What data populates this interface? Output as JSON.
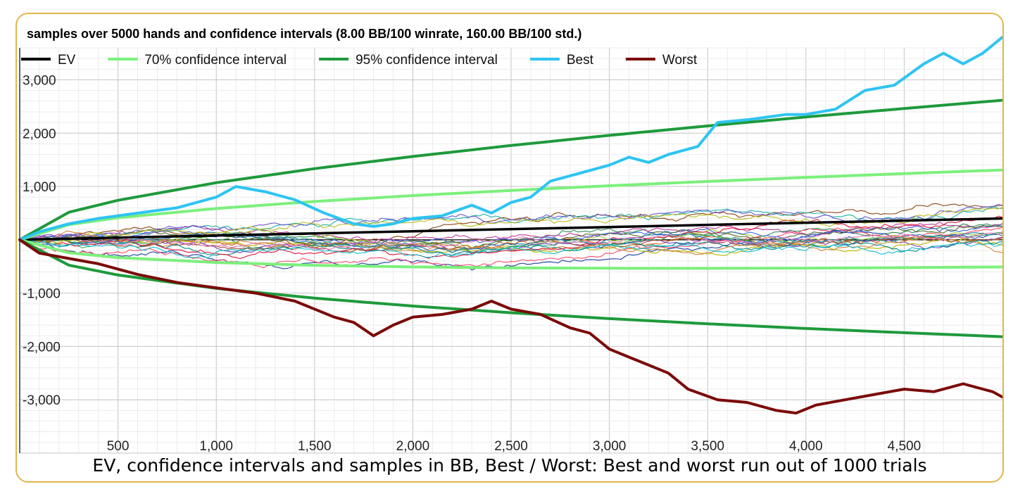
{
  "caption": "EV, confidence intervals and samples in BB, Best / Worst: Best and worst run out of 1000 trials",
  "chart_data": {
    "type": "line",
    "title": "samples over 5000 hands and confidence intervals (8.00 BB/100 winrate, 160.00 BB/100 std.)",
    "xlabel": "",
    "ylabel": "",
    "xlim": [
      0,
      5000
    ],
    "ylim": [
      -4000,
      3600
    ],
    "x_ticks": [
      500,
      1000,
      1500,
      2000,
      2500,
      3000,
      3500,
      4000,
      4500
    ],
    "x_tick_labels": [
      "500",
      "1,000",
      "1,500",
      "2,000",
      "2,500",
      "3,000",
      "3,500",
      "4,000",
      "4,500"
    ],
    "y_ticks": [
      3000,
      2000,
      1000,
      -1000,
      -2000,
      -3000
    ],
    "y_tick_labels": [
      "3,000",
      "2,000",
      "1,000",
      "-1,000",
      "-2,000",
      "-3,000"
    ],
    "grid": true,
    "legend_position": "top",
    "winrate_bb_per_100": 8.0,
    "std_bb_per_100": 160.0,
    "legend": [
      {
        "label": "EV",
        "color": "#000000"
      },
      {
        "label": "70% confidence interval",
        "color": "#7cf07c"
      },
      {
        "label": "95% confidence interval",
        "color": "#1e9a3c"
      },
      {
        "label": "Best",
        "color": "#2ec4f2"
      },
      {
        "label": "Worst",
        "color": "#7b0a0a"
      }
    ],
    "series": [
      {
        "name": "EV",
        "color": "#000000",
        "x": [
          0,
          1000,
          2000,
          3000,
          4000,
          5000
        ],
        "y": [
          0,
          80,
          160,
          240,
          320,
          400
        ]
      },
      {
        "name": "70% confidence interval",
        "color": "#7cf07c",
        "x": [
          0,
          250,
          500,
          1000,
          1500,
          2000,
          2500,
          3000,
          3500,
          4000,
          4500,
          5000
        ],
        "y_upper": [
          0,
          283,
          413,
          586,
          718,
          829,
          926,
          1014,
          1095,
          1171,
          1242,
          1309
        ],
        "y_lower": [
          0,
          -243,
          -333,
          -426,
          -478,
          -509,
          -526,
          -534,
          -535,
          -531,
          -522,
          -509
        ]
      },
      {
        "name": "95% confidence interval",
        "color": "#1e9a3c",
        "x": [
          0,
          250,
          500,
          1000,
          1500,
          2000,
          2500,
          3000,
          3500,
          4000,
          4500,
          5000
        ],
        "y_upper": [
          0,
          516,
          741,
          1071,
          1334,
          1563,
          1768,
          1958,
          2135,
          2303,
          2463,
          2617
        ],
        "y_lower": [
          0,
          -476,
          -661,
          -911,
          -1094,
          -1243,
          -1368,
          -1478,
          -1575,
          -1663,
          -1743,
          -1817
        ]
      },
      {
        "name": "Best",
        "color": "#2ec4f2",
        "x": [
          0,
          100,
          250,
          400,
          600,
          800,
          1000,
          1100,
          1250,
          1400,
          1550,
          1700,
          1800,
          1900,
          2000,
          2150,
          2300,
          2400,
          2500,
          2600,
          2700,
          2800,
          3000,
          3100,
          3200,
          3300,
          3450,
          3550,
          3700,
          3900,
          4000,
          4150,
          4300,
          4450,
          4600,
          4700,
          4800,
          4900,
          5000
        ],
        "y": [
          0,
          150,
          300,
          400,
          500,
          600,
          800,
          1000,
          900,
          750,
          500,
          300,
          250,
          300,
          400,
          450,
          650,
          500,
          700,
          800,
          1100,
          1200,
          1400,
          1550,
          1450,
          1600,
          1750,
          2200,
          2250,
          2350,
          2350,
          2450,
          2800,
          2900,
          3300,
          3500,
          3300,
          3500,
          3800
        ]
      },
      {
        "name": "Worst",
        "color": "#7b0a0a",
        "x": [
          0,
          100,
          250,
          400,
          600,
          800,
          1000,
          1200,
          1400,
          1600,
          1700,
          1800,
          1900,
          2000,
          2150,
          2300,
          2400,
          2500,
          2650,
          2800,
          2900,
          3000,
          3100,
          3200,
          3300,
          3400,
          3550,
          3700,
          3850,
          3950,
          4050,
          4200,
          4350,
          4500,
          4650,
          4800,
          4950,
          5000
        ],
        "y": [
          0,
          -250,
          -350,
          -450,
          -650,
          -800,
          -900,
          -1000,
          -1150,
          -1450,
          -1550,
          -1800,
          -1600,
          -1450,
          -1400,
          -1300,
          -1150,
          -1300,
          -1400,
          -1650,
          -1750,
          -2050,
          -2200,
          -2350,
          -2500,
          -2800,
          -3000,
          -3050,
          -3200,
          -3250,
          -3100,
          -3000,
          -2900,
          -2800,
          -2850,
          -2700,
          -2850,
          -2950
        ]
      }
    ]
  }
}
